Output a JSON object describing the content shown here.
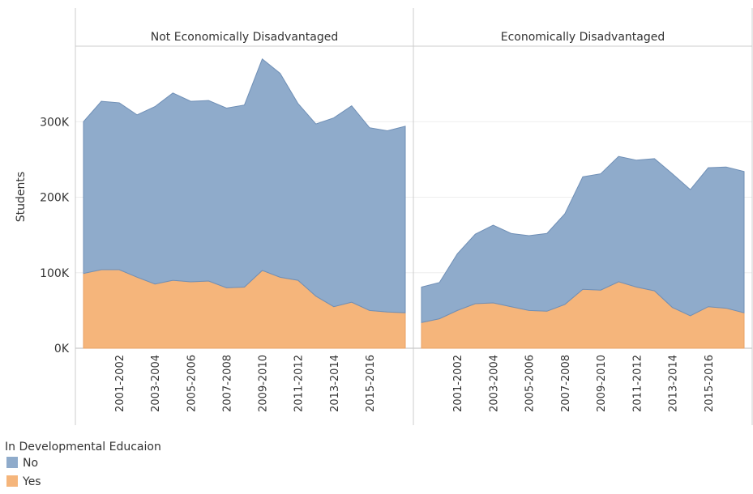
{
  "chart_data": [
    {
      "type": "area",
      "title": "Not Economically Disadvantaged",
      "ylabel": "Students",
      "legend_title": "In Developmental Educaion",
      "categories": [
        null,
        null,
        "2001-2002",
        null,
        "2003-2004",
        null,
        "2005-2006",
        null,
        "2007-2008",
        null,
        "2009-2010",
        null,
        "2011-2012",
        null,
        "2013-2014",
        null,
        "2015-2016",
        null,
        null
      ],
      "series": [
        {
          "name": "No",
          "color": "#8fabcb",
          "values": [
            201000,
            223000,
            221000,
            215000,
            235000,
            248000,
            239000,
            239000,
            238000,
            241000,
            280000,
            270000,
            234000,
            228000,
            250000,
            260000,
            242000,
            240000,
            247000
          ]
        },
        {
          "name": "Yes",
          "color": "#f5b57b",
          "values": [
            99000,
            104000,
            104000,
            94000,
            85000,
            90000,
            88000,
            89000,
            80000,
            81000,
            103000,
            94000,
            90000,
            69000,
            55000,
            61000,
            50000,
            48000,
            47000
          ]
        }
      ],
      "ylim": [
        0,
        400000
      ],
      "yticks": [
        {
          "value": 0,
          "label": "0K"
        },
        {
          "value": 100000,
          "label": "100K"
        },
        {
          "value": 200000,
          "label": "200K"
        },
        {
          "value": 300000,
          "label": "300K"
        }
      ]
    },
    {
      "type": "area",
      "title": "Economically Disadvantaged",
      "categories": [
        null,
        null,
        "2001-2002",
        null,
        "2003-2004",
        null,
        "2005-2006",
        null,
        "2007-2008",
        null,
        "2009-2010",
        null,
        "2011-2012",
        null,
        "2013-2014",
        null,
        "2015-2016",
        null,
        null
      ],
      "series": [
        {
          "name": "No",
          "color": "#8fabcb",
          "values": [
            47000,
            48000,
            75000,
            92000,
            103000,
            97000,
            99000,
            103000,
            120000,
            149000,
            154000,
            166000,
            168000,
            175000,
            177000,
            167000,
            184000,
            187000,
            187000
          ]
        },
        {
          "name": "Yes",
          "color": "#f5b57b",
          "values": [
            34000,
            39000,
            50000,
            59000,
            60000,
            55000,
            50000,
            49000,
            58000,
            78000,
            77000,
            88000,
            81000,
            76000,
            54000,
            43000,
            55000,
            53000,
            47000
          ]
        }
      ],
      "ylim": [
        0,
        400000
      ]
    }
  ]
}
